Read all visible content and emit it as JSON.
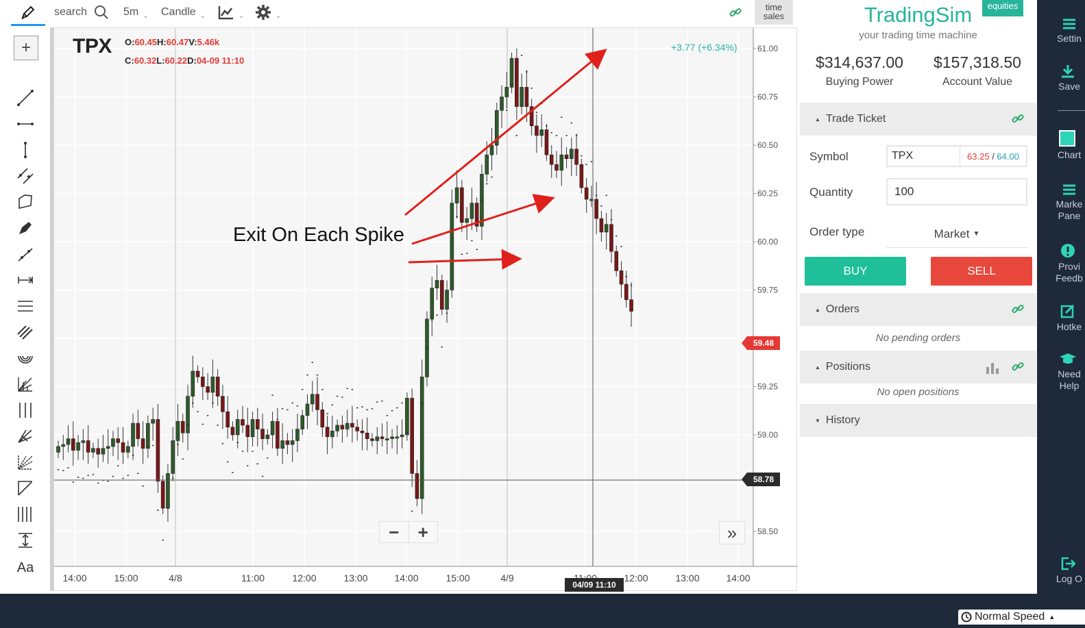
{
  "toolbar": {
    "search_label": "search",
    "interval": "5m",
    "chart_type": "Candle",
    "time_sales_line1": "time",
    "time_sales_line2": "sales"
  },
  "chart": {
    "symbol": "TPX",
    "ohlc": {
      "o_label": "O:",
      "o": "60.45",
      "h_label": "H:",
      "h": "60.47",
      "v_label": "V:",
      "v": "5.46k",
      "c_label": "C:",
      "c": "60.32",
      "l_label": "L:",
      "l": "60.22",
      "d_label": "D:",
      "d": "04-09 11:10"
    },
    "change": "+3.77 (+6.34%)",
    "annotation": "Exit On Each Spike",
    "last_price_tag": "59.48",
    "crosshair_price_tag": "58.78",
    "crosshair_time_tag": "04/09 11:10",
    "zoom_minus": "−",
    "zoom_plus": "+",
    "expand": "»"
  },
  "chart_data": {
    "type": "candlestick",
    "symbol": "TPX",
    "y_ticks": [
      "61.00",
      "60.75",
      "60.50",
      "60.25",
      "60.00",
      "59.75",
      "59.50",
      "59.25",
      "59.00",
      "58.75",
      "58.50"
    ],
    "x_ticks": [
      "14:00",
      "15:00",
      "4/8",
      "11:00",
      "12:00",
      "13:00",
      "14:00",
      "15:00",
      "4/9",
      "11:00",
      "12:00",
      "13:00",
      "14:00"
    ],
    "ylim": [
      58.3,
      61.1
    ],
    "indicator": "parabolic SAR (dotted)",
    "candles_close_path": [
      58.94,
      58.95,
      58.98,
      58.92,
      58.96,
      58.97,
      58.91,
      58.93,
      58.9,
      58.93,
      58.94,
      58.98,
      58.96,
      58.91,
      58.94,
      59.06,
      58.98,
      58.93,
      59.06,
      59.08,
      58.76,
      58.62,
      58.8,
      58.97,
      59.07,
      59.01,
      59.2,
      59.33,
      59.3,
      59.25,
      59.22,
      59.3,
      59.2,
      59.12,
      59.04,
      59.0,
      59.08,
      59.05,
      58.99,
      59.08,
      59.03,
      58.98,
      59.0,
      59.07,
      58.93,
      58.97,
      58.95,
      58.97,
      59.03,
      59.1,
      59.16,
      59.21,
      59.13,
      59.04,
      58.99,
      59.02,
      59.05,
      59.03,
      59.06,
      59.04,
      59.02,
      59.01,
      58.98,
      58.97,
      58.99,
      58.98,
      58.98,
      58.99,
      58.99,
      59.0,
      59.19,
      58.8,
      58.67,
      59.3,
      59.6,
      59.76,
      59.8,
      59.65,
      59.75,
      60.2,
      60.28,
      60.1,
      60.12,
      60.2,
      60.08,
      60.35,
      60.45,
      60.5,
      60.68,
      60.75,
      60.8,
      60.95,
      60.7,
      60.8,
      60.7,
      60.6,
      60.55,
      60.58,
      60.45,
      60.4,
      60.37,
      60.45,
      60.43,
      60.48,
      60.4,
      60.28,
      60.22,
      60.22,
      60.12,
      60.05,
      60.09,
      59.95,
      59.85,
      59.78,
      59.7,
      59.64
    ]
  },
  "panel": {
    "brand": "TradingSim",
    "badge": "equities",
    "tagline": "your trading time machine",
    "buying_power_value": "$314,637.00",
    "buying_power_label": "Buying Power",
    "account_value": "$157,318.50",
    "account_value_label": "Account Value",
    "trade_ticket": "Trade Ticket",
    "symbol_label": "Symbol",
    "symbol_value": "TPX",
    "bid": "63.25",
    "ask": "64.00",
    "quote_sep": " / ",
    "quantity_label": "Quantity",
    "quantity_value": "100",
    "order_type_label": "Order type",
    "order_type_value": "Market",
    "buy": "BUY",
    "sell": "SELL",
    "orders": "Orders",
    "no_orders": "No pending orders",
    "positions": "Positions",
    "no_positions": "No open positions",
    "history": "History"
  },
  "nav": {
    "settings": "Settin",
    "save": "Save",
    "chart": "Chart",
    "market_panel_1": "Marke",
    "market_panel_2": "Pane",
    "feedback_1": "Provi",
    "feedback_2": "Feedb",
    "hotkeys": "Hotke",
    "help_1": "Need",
    "help_2": "Help",
    "logout": "Log O"
  },
  "footer": {
    "speed": "Normal Speed"
  },
  "colors": {
    "accent": "#26b59a",
    "up": "#2e5a2a",
    "down": "#7a1717",
    "sell": "#e8473b",
    "nav_bg": "#1e2a3a"
  }
}
